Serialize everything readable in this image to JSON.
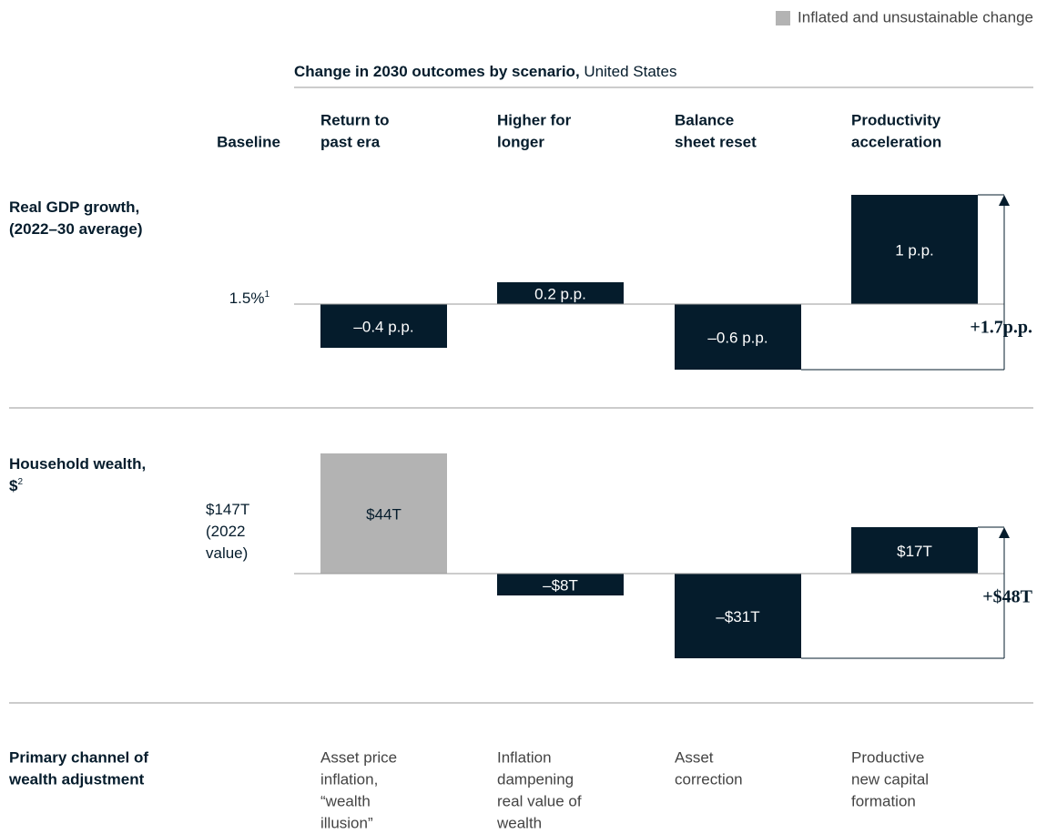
{
  "legend": {
    "label": "Inflated and unsustainable change",
    "color": "#b3b3b3"
  },
  "title": "Change in 2030 outcomes by scenario,",
  "subtitle": "United States",
  "baseline_header": "Baseline",
  "categories": [
    [
      "Return to",
      "past era"
    ],
    [
      "Higher for",
      "longer"
    ],
    [
      "Balance",
      "sheet reset"
    ],
    [
      "Productivity",
      "acceleration"
    ]
  ],
  "chart_data": [
    {
      "type": "bar",
      "label": [
        "Real GDP growth,",
        "(2022–30 average)"
      ],
      "baseline": [
        "1.5%"
      ],
      "baseline_footnote": "1",
      "values": [
        -0.4,
        0.2,
        -0.6,
        1
      ],
      "value_labels": [
        "–0.4 p.p.",
        "0.2 p.p.",
        "–0.6 p.p.",
        "1 p.p."
      ],
      "colors": [
        "#051c2c",
        "#051c2c",
        "#051c2c",
        "#051c2c"
      ],
      "total_label": "+1.7p.p.",
      "ylim": [
        -0.7,
        1.1
      ]
    },
    {
      "type": "bar",
      "label": [
        "Household wealth,",
        "$"
      ],
      "label_footnote": "2",
      "baseline": [
        "$147T",
        "(2022",
        "value)"
      ],
      "values": [
        44,
        -8,
        -31,
        17
      ],
      "value_labels": [
        "$44T",
        "–$8T",
        "–$31T",
        "$17T"
      ],
      "colors": [
        "#b3b3b3",
        "#051c2c",
        "#051c2c",
        "#051c2c"
      ],
      "total_label": "+$48T",
      "ylim": [
        -33,
        46
      ]
    }
  ],
  "channel": {
    "label": [
      "Primary channel of",
      "wealth adjustment"
    ],
    "values": [
      [
        "Asset price",
        "inflation,",
        "“wealth",
        "illusion”"
      ],
      [
        "Inflation",
        "dampening",
        "real value of",
        "wealth"
      ],
      [
        "Asset",
        "correction"
      ],
      [
        "Productive",
        "new capital",
        "formation"
      ]
    ]
  }
}
